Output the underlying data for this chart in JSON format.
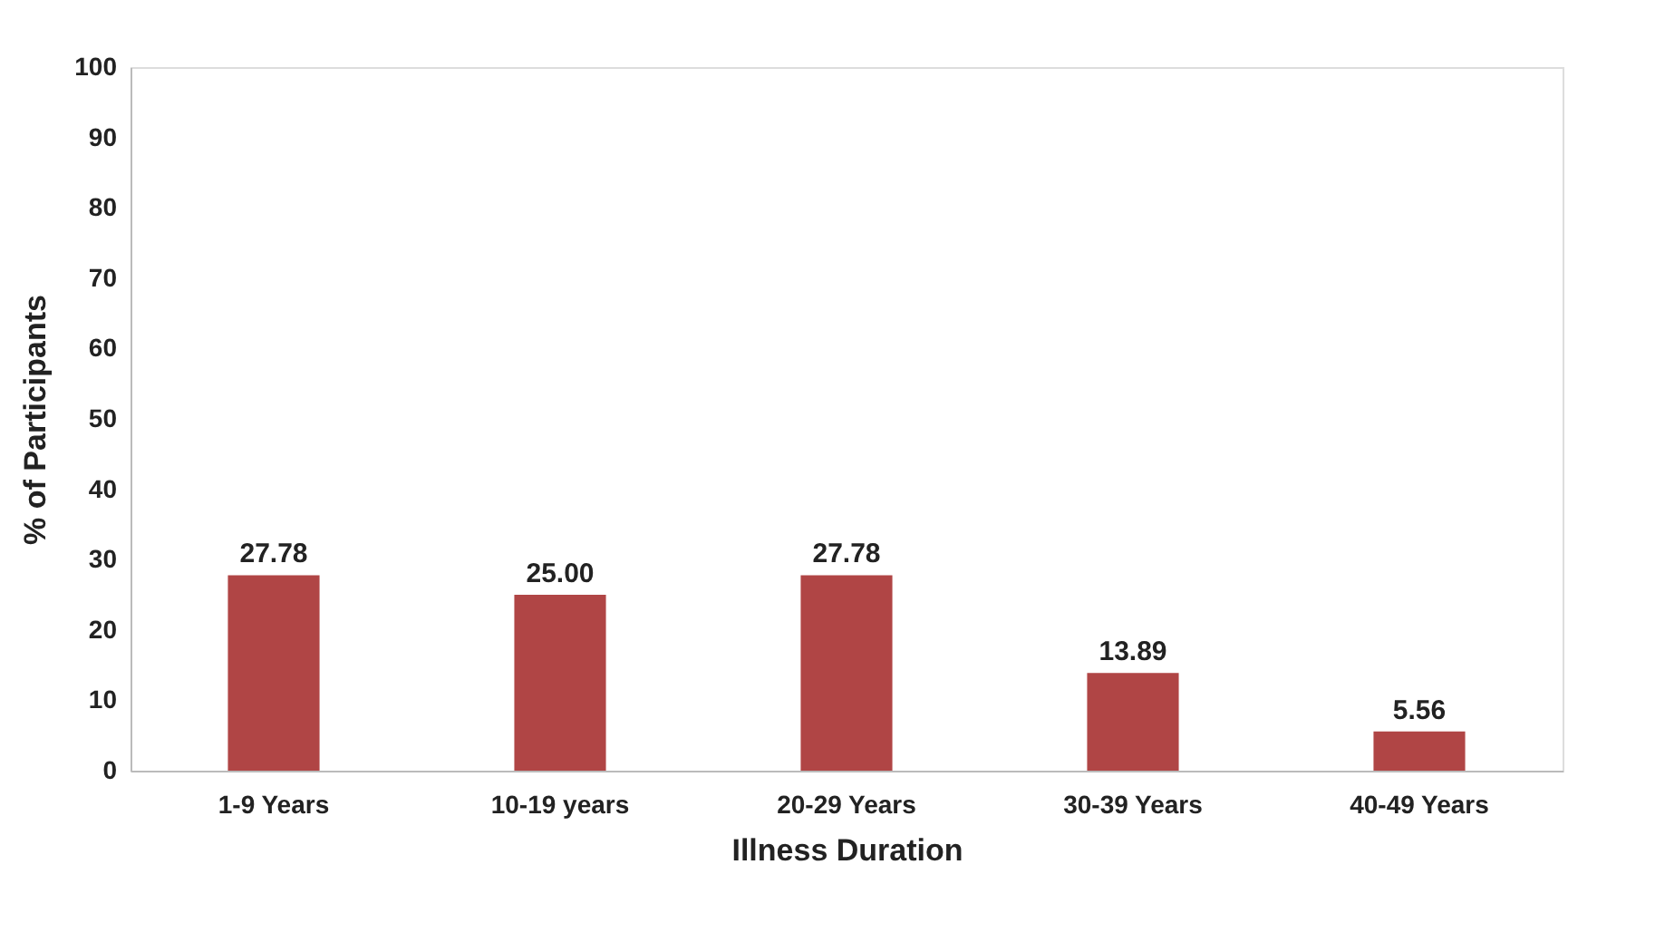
{
  "chart_data": {
    "type": "bar",
    "xlabel": "Illness Duration",
    "ylabel": "% of Participants",
    "categories": [
      "1-9 Years",
      "10-19 years",
      "20-29 Years",
      "30-39 Years",
      "40-49 Years"
    ],
    "values": [
      27.78,
      25.0,
      27.78,
      13.89,
      5.56
    ],
    "value_labels": [
      "27.78",
      "25.00",
      "27.78",
      "13.89",
      "5.56"
    ],
    "color": "#b04545",
    "ylim": [
      0,
      100
    ],
    "yticks": [
      0,
      10,
      20,
      30,
      40,
      50,
      60,
      70,
      80,
      90,
      100
    ],
    "grid": false
  }
}
